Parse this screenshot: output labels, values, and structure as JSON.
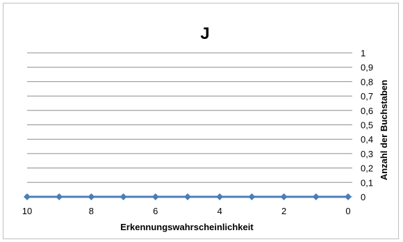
{
  "chart_data": {
    "type": "line",
    "title": "J",
    "xlabel": "Erkennungswahrscheinlichkeit",
    "ylabel": "Anzahl der Buchstaben",
    "x_reversed": true,
    "xlim": [
      0,
      10
    ],
    "ylim": [
      0,
      1
    ],
    "grid": true,
    "y_axis_position": "right",
    "x_ticks": [
      "10",
      "8",
      "6",
      "4",
      "2",
      "0"
    ],
    "y_ticks": [
      "0",
      "0,1",
      "0,2",
      "0,3",
      "0,4",
      "0,5",
      "0,6",
      "0,7",
      "0,8",
      "0,9",
      "1"
    ],
    "series": [
      {
        "color": "#4a7ebb",
        "marker": "diamond",
        "x": [
          10,
          9,
          8,
          7,
          6,
          5,
          4,
          3,
          2,
          1,
          0
        ],
        "y": [
          0,
          0,
          0,
          0,
          0,
          0,
          0,
          0,
          0,
          0,
          0
        ]
      }
    ]
  }
}
